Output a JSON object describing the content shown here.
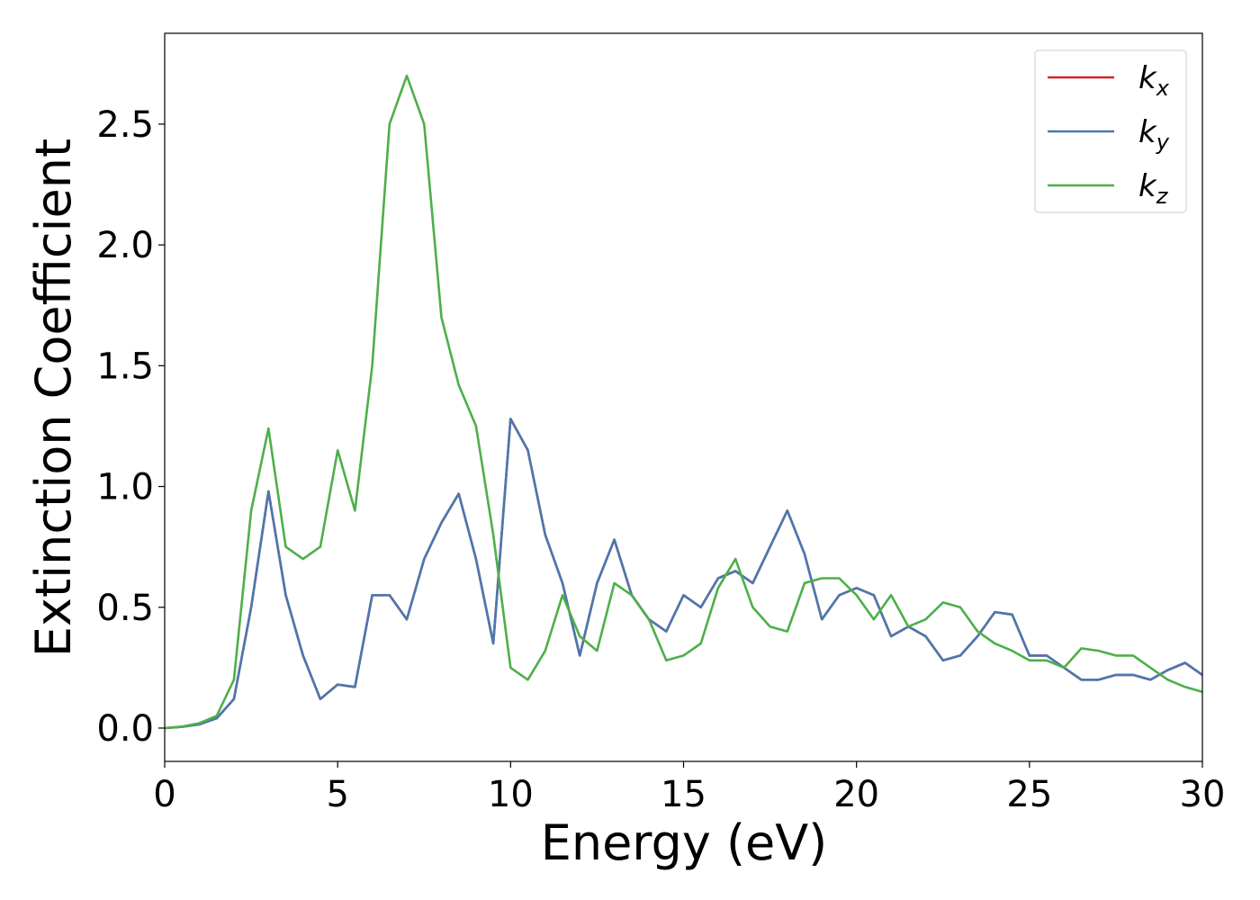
{
  "chart_data": {
    "type": "line",
    "xlabel": "Energy (eV)",
    "ylabel": "Extinction Coefficient",
    "x": [
      0,
      0.5,
      1,
      1.5,
      2,
      2.5,
      3,
      3.5,
      4,
      4.5,
      5,
      5.5,
      6,
      6.5,
      7,
      7.5,
      8,
      8.5,
      9,
      9.5,
      10,
      10.5,
      11,
      11.5,
      12,
      12.5,
      13,
      13.5,
      14,
      14.5,
      15,
      15.5,
      16,
      16.5,
      17,
      17.5,
      18,
      18.5,
      19,
      19.5,
      20,
      20.5,
      21,
      21.5,
      22,
      22.5,
      23,
      23.5,
      24,
      24.5,
      25,
      25.5,
      26,
      26.5,
      27,
      27.5,
      28,
      28.5,
      29,
      29.5,
      30
    ],
    "series": [
      {
        "name": "kx",
        "color": "#d62728",
        "values": [
          0,
          0.005,
          0.015,
          0.04,
          0.12,
          0.5,
          0.98,
          0.55,
          0.3,
          0.12,
          0.18,
          0.17,
          0.55,
          0.55,
          0.45,
          0.7,
          0.85,
          0.97,
          0.7,
          0.35,
          1.28,
          1.15,
          0.8,
          0.6,
          0.3,
          0.6,
          0.78,
          0.55,
          0.45,
          0.4,
          0.55,
          0.5,
          0.62,
          0.65,
          0.6,
          0.75,
          0.9,
          0.72,
          0.45,
          0.55,
          0.58,
          0.55,
          0.38,
          0.42,
          0.38,
          0.28,
          0.3,
          0.38,
          0.48,
          0.47,
          0.3,
          0.3,
          0.25,
          0.2,
          0.2,
          0.22,
          0.22,
          0.2,
          0.24,
          0.27,
          0.22
        ]
      },
      {
        "name": "ky",
        "color": "#4a78b0",
        "values": [
          0,
          0.005,
          0.015,
          0.04,
          0.12,
          0.5,
          0.98,
          0.55,
          0.3,
          0.12,
          0.18,
          0.17,
          0.55,
          0.55,
          0.45,
          0.7,
          0.85,
          0.97,
          0.7,
          0.35,
          1.28,
          1.15,
          0.8,
          0.6,
          0.3,
          0.6,
          0.78,
          0.55,
          0.45,
          0.4,
          0.55,
          0.5,
          0.62,
          0.65,
          0.6,
          0.75,
          0.9,
          0.72,
          0.45,
          0.55,
          0.58,
          0.55,
          0.38,
          0.42,
          0.38,
          0.28,
          0.3,
          0.38,
          0.48,
          0.47,
          0.3,
          0.3,
          0.25,
          0.2,
          0.2,
          0.22,
          0.22,
          0.2,
          0.24,
          0.27,
          0.22
        ]
      },
      {
        "name": "kz",
        "color": "#4daf4a",
        "values": [
          0,
          0.006,
          0.02,
          0.05,
          0.2,
          0.9,
          1.24,
          0.75,
          0.7,
          0.75,
          1.15,
          0.9,
          1.5,
          2.5,
          2.7,
          2.5,
          1.7,
          1.42,
          1.25,
          0.8,
          0.25,
          0.2,
          0.32,
          0.55,
          0.38,
          0.32,
          0.6,
          0.55,
          0.45,
          0.28,
          0.3,
          0.35,
          0.58,
          0.7,
          0.5,
          0.42,
          0.4,
          0.6,
          0.62,
          0.62,
          0.55,
          0.45,
          0.55,
          0.42,
          0.45,
          0.52,
          0.5,
          0.4,
          0.35,
          0.32,
          0.28,
          0.28,
          0.25,
          0.33,
          0.32,
          0.3,
          0.3,
          0.25,
          0.2,
          0.17,
          0.15
        ]
      }
    ],
    "xlim": [
      0,
      30
    ],
    "xticks": [
      0,
      5,
      10,
      15,
      20,
      25,
      30
    ],
    "ylim": [
      -0.138,
      2.876
    ],
    "yticks": [
      {
        "value": 0,
        "label": "0.0"
      },
      0.5,
      {
        "value": 1,
        "label": "1.0"
      },
      1.5,
      {
        "value": 2,
        "label": "2.0"
      },
      2.5
    ],
    "legend": "upper right"
  }
}
